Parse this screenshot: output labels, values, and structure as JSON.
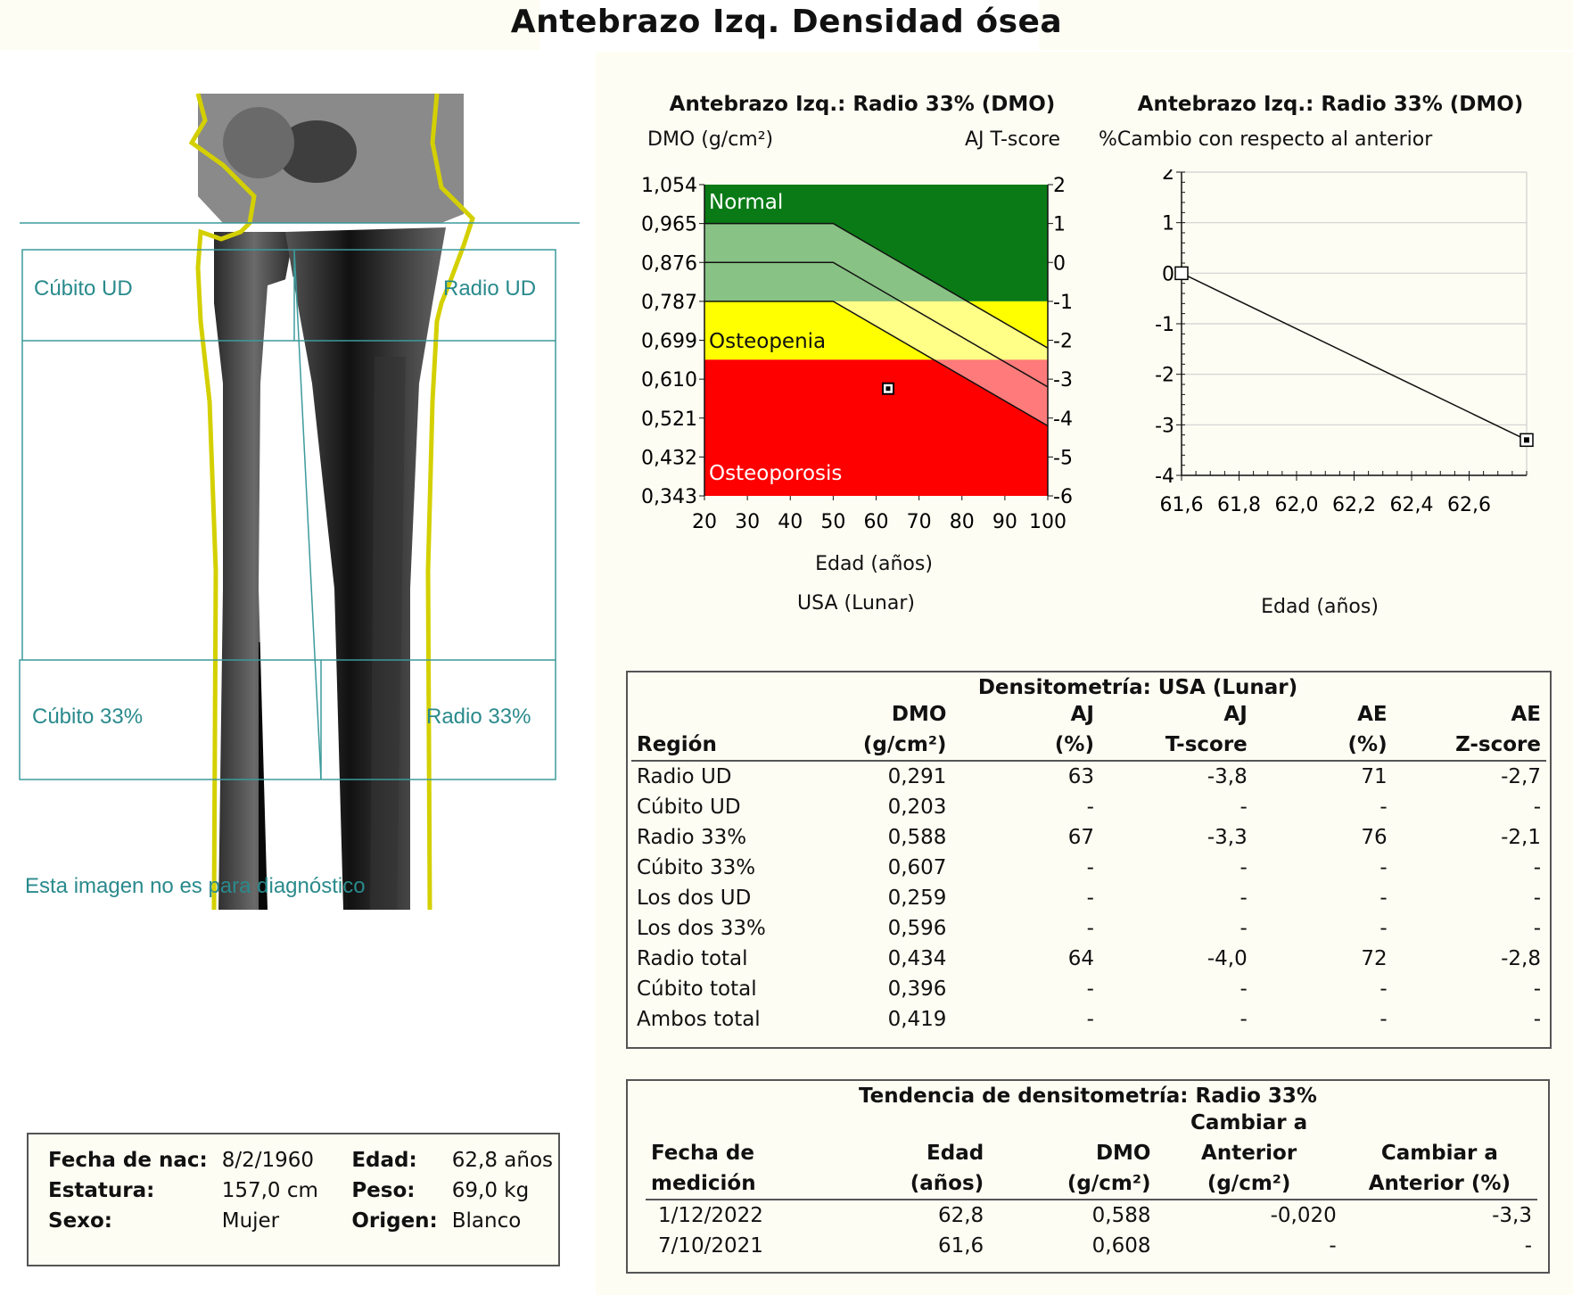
{
  "title": "Antebrazo Izq. Densidad ósea",
  "image_panel": {
    "labels": {
      "cubito_ud": "Cúbito UD",
      "radio_ud": "Radio UD",
      "cubito_33": "Cúbito 33%",
      "radio_33": "Radio 33%"
    },
    "disclaimer": "Esta imagen no es para diagnóstico"
  },
  "bmd_chart": {
    "title": "Antebrazo Izq.: Radio 33% (DMO)",
    "y_label": "DMO (g/cm²)",
    "y2_label": "AJ T-score",
    "x_label": "Edad (años)",
    "reference": "USA (Lunar)",
    "zones": {
      "normal": "Normal",
      "osteopenia": "Osteopenia",
      "osteoporosis": "Osteoporosis"
    },
    "y_ticks": [
      "1,054",
      "0,965",
      "0,876",
      "0,787",
      "0,699",
      "0,610",
      "0,521",
      "0,432",
      "0,343"
    ],
    "t_ticks": [
      "2",
      "1",
      "0",
      "-1",
      "-2",
      "-3",
      "-4",
      "-5",
      "-6"
    ],
    "x_ticks": [
      "20",
      "30",
      "40",
      "50",
      "60",
      "70",
      "80",
      "90",
      "100"
    ],
    "colors": {
      "normal": "#0a7a16",
      "normal_band": "#88c284",
      "osteopenia": "#ffff00",
      "osteopenia_band": "#ffff88",
      "osteoporosis": "#ff0000",
      "osteoporosis_band": "#ff7b7b"
    }
  },
  "trend_chart": {
    "title": "Antebrazo Izq.: Radio 33%  (DMO)",
    "subtitle": "%Cambio con respecto al anterior",
    "x_label": "Edad (años)",
    "y_ticks": [
      "2",
      "1",
      "0",
      "-1",
      "-2",
      "-3",
      "-4"
    ],
    "x_ticks": [
      "61,6",
      "61,8",
      "62,0",
      "62,2",
      "62,4",
      "62,6"
    ]
  },
  "chart_data": [
    {
      "type": "scatter",
      "title": "Antebrazo Izq.: Radio 33% (DMO)",
      "xlabel": "Edad (años)",
      "ylabel": "DMO (g/cm²)",
      "xlim": [
        20,
        100
      ],
      "ylim": [
        0.343,
        1.054
      ],
      "series": [
        {
          "x": [
            62.8
          ],
          "y": [
            0.588
          ]
        }
      ]
    },
    {
      "type": "line",
      "title": "Antebrazo Izq.: Radio 33%  (DMO)",
      "xlabel": "Edad (años)",
      "ylabel": "%Cambio con respecto al anterior",
      "xlim": [
        61.6,
        62.8
      ],
      "ylim": [
        -4,
        2
      ],
      "series": [
        {
          "x": [
            61.6,
            62.8
          ],
          "y": [
            0,
            -3.3
          ]
        }
      ]
    }
  ],
  "densitometry": {
    "title": "Densitometría: USA (Lunar)",
    "headers": {
      "region": "Región",
      "dmo_1": "DMO",
      "dmo_2": "(g/cm²)",
      "aj_pct_1": "AJ",
      "aj_pct_2": "(%)",
      "aj_t_1": "AJ",
      "aj_t_2": "T-score",
      "ae_pct_1": "AE",
      "ae_pct_2": "(%)",
      "ae_z_1": "AE",
      "ae_z_2": "Z-score"
    },
    "rows": [
      {
        "region": "Radio UD",
        "dmo": "0,291",
        "aj_pct": "63",
        "aj_t": "-3,8",
        "ae_pct": "71",
        "ae_z": "-2,7"
      },
      {
        "region": "Cúbito UD",
        "dmo": "0,203",
        "aj_pct": "-",
        "aj_t": "-",
        "ae_pct": "-",
        "ae_z": "-"
      },
      {
        "region": "Radio 33%",
        "dmo": "0,588",
        "aj_pct": "67",
        "aj_t": "-3,3",
        "ae_pct": "76",
        "ae_z": "-2,1"
      },
      {
        "region": "Cúbito 33%",
        "dmo": "0,607",
        "aj_pct": "-",
        "aj_t": "-",
        "ae_pct": "-",
        "ae_z": "-"
      },
      {
        "region": "Los dos UD",
        "dmo": "0,259",
        "aj_pct": "-",
        "aj_t": "-",
        "ae_pct": "-",
        "ae_z": "-"
      },
      {
        "region": "Los dos 33%",
        "dmo": "0,596",
        "aj_pct": "-",
        "aj_t": "-",
        "ae_pct": "-",
        "ae_z": "-"
      },
      {
        "region": "Radio total",
        "dmo": "0,434",
        "aj_pct": "64",
        "aj_t": "-4,0",
        "ae_pct": "72",
        "ae_z": "-2,8"
      },
      {
        "region": "Cúbito total",
        "dmo": "0,396",
        "aj_pct": "-",
        "aj_t": "-",
        "ae_pct": "-",
        "ae_z": "-"
      },
      {
        "region": "Ambos total",
        "dmo": "0,419",
        "aj_pct": "-",
        "aj_t": "-",
        "ae_pct": "-",
        "ae_z": "-"
      }
    ]
  },
  "trend_table": {
    "title": "Tendencia de densitometría: Radio 33%",
    "headers": {
      "fecha_1": "Fecha de",
      "fecha_2": "medición",
      "edad_1": "Edad",
      "edad_2": "(años)",
      "dmo_1": "DMO",
      "dmo_2": "(g/cm²)",
      "cambio_1": "Cambiar a",
      "cambio_2": "Anterior",
      "cambio_3": "(g/cm²)",
      "cambio_pct_1": "Cambiar a",
      "cambio_pct_2": "Anterior (%)"
    },
    "rows": [
      {
        "fecha": "1/12/2022",
        "edad": "62,8",
        "dmo": "0,588",
        "cambio": "-0,020",
        "cambio_pct": "-3,3"
      },
      {
        "fecha": "7/10/2021",
        "edad": "61,6",
        "dmo": "0,608",
        "cambio": "-",
        "cambio_pct": "-"
      }
    ]
  },
  "patient": {
    "fecha_nac_label": "Fecha de nac:",
    "fecha_nac": "8/2/1960",
    "estatura_label": "Estatura:",
    "estatura": "157,0 cm",
    "sexo_label": "Sexo:",
    "sexo": "Mujer",
    "edad_label": "Edad:",
    "edad": "62,8 años",
    "peso_label": "Peso:",
    "peso": "69,0 kg",
    "origen_label": "Origen:",
    "origen": "Blanco"
  }
}
